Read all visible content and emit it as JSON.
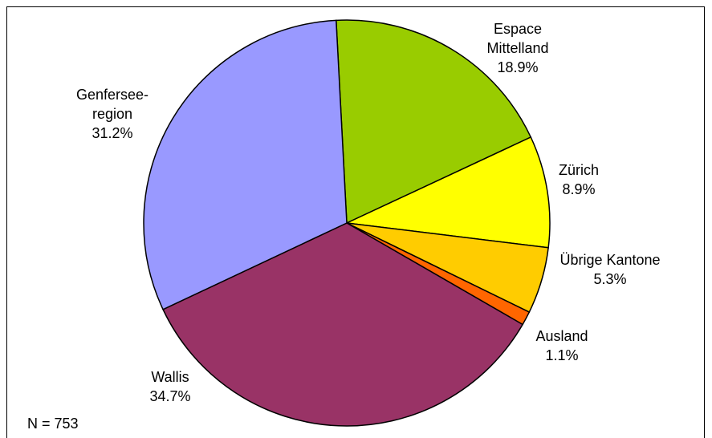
{
  "chart_data": {
    "type": "pie",
    "categories": [
      "Espace Mittelland",
      "Zürich",
      "Übrige Kantone",
      "Ausland",
      "Wallis",
      "Genfersee-region"
    ],
    "values": [
      18.9,
      8.9,
      5.3,
      1.1,
      34.7,
      31.2
    ],
    "value_labels": [
      "18.9%",
      "8.9%",
      "5.3%",
      "1.1%",
      "34.7%",
      "31.2%"
    ],
    "colors": [
      "#99cc00",
      "#ffff00",
      "#ffcc00",
      "#ff6600",
      "#993366",
      "#9999ff"
    ],
    "annotation": "N = 753"
  }
}
